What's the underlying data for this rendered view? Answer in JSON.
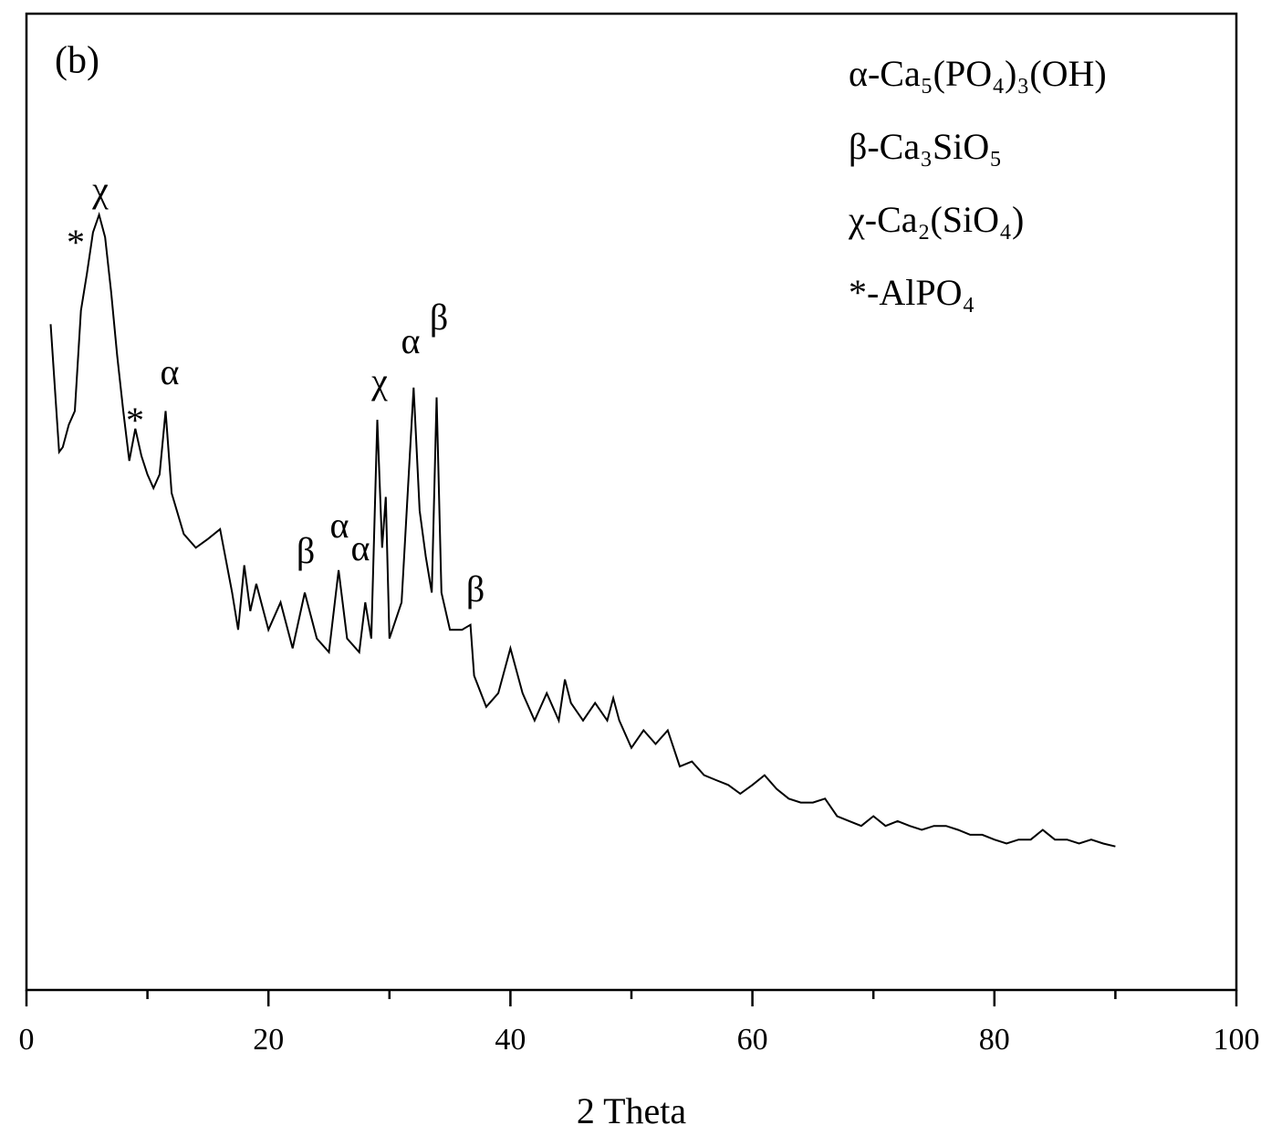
{
  "chart_data": {
    "type": "line",
    "panel_label": "(b)",
    "xlabel": "2 Theta",
    "x": [
      2,
      2.7,
      3,
      3.5,
      4,
      4.5,
      5,
      5.5,
      6,
      6.5,
      7,
      7.5,
      8,
      8.5,
      9,
      9.5,
      10,
      10.5,
      11,
      11.5,
      12,
      13,
      14,
      15,
      16,
      17,
      17.5,
      18,
      18.5,
      19,
      20,
      21,
      22,
      23,
      24,
      25,
      25.8,
      26.5,
      27.5,
      28,
      28.5,
      29,
      29.4,
      29.7,
      30,
      31,
      32,
      32.5,
      33,
      33.5,
      33.9,
      34.3,
      35,
      36,
      36.7,
      37,
      38,
      39,
      40,
      41,
      42,
      43,
      44,
      44.5,
      45,
      46,
      47,
      48,
      48.5,
      49,
      50,
      51,
      52,
      53,
      54,
      55,
      56,
      57,
      58,
      59,
      60,
      61,
      62,
      63,
      64,
      65,
      66,
      67,
      68,
      69,
      70,
      71,
      72,
      73,
      74,
      75,
      76,
      77,
      78,
      79,
      80,
      81,
      82,
      83,
      84,
      85,
      86,
      87,
      88,
      89,
      90
    ],
    "values": [
      68.2,
      55.1,
      55.6,
      57.9,
      59.3,
      69.6,
      73.4,
      77.6,
      79.4,
      77.1,
      71.5,
      65.0,
      59.3,
      54.2,
      57.5,
      54.7,
      52.8,
      51.4,
      52.8,
      59.3,
      50.9,
      46.7,
      45.3,
      46.2,
      47.2,
      40.7,
      36.9,
      43.5,
      38.8,
      41.6,
      36.9,
      39.7,
      35.0,
      40.7,
      36.0,
      34.6,
      43.0,
      36.0,
      34.6,
      39.7,
      36.0,
      58.4,
      45.3,
      50.5,
      36.0,
      39.7,
      61.7,
      49.1,
      44.4,
      40.7,
      60.7,
      40.7,
      36.9,
      36.9,
      37.4,
      32.2,
      29.0,
      30.4,
      35.0,
      30.4,
      27.6,
      30.4,
      27.6,
      31.8,
      29.4,
      27.6,
      29.4,
      27.6,
      29.9,
      27.6,
      24.8,
      26.6,
      25.2,
      26.6,
      22.9,
      23.4,
      22.0,
      21.5,
      21.0,
      20.1,
      21.0,
      22.0,
      20.6,
      19.6,
      19.2,
      19.2,
      19.6,
      17.8,
      17.3,
      16.8,
      17.8,
      16.8,
      17.3,
      16.8,
      16.4,
      16.8,
      16.8,
      16.4,
      15.9,
      15.9,
      15.4,
      15.0,
      15.4,
      15.4,
      16.4,
      15.4,
      15.4,
      15.0,
      15.4,
      15.0,
      14.7
    ],
    "color": "#000000",
    "xlim": [
      0,
      100
    ],
    "xticks": [
      0,
      20,
      40,
      60,
      80,
      100
    ],
    "xminorticks": [
      10,
      30,
      50,
      70,
      90
    ],
    "ylim": [
      0,
      100
    ],
    "annotations": [
      "*",
      "χ",
      "α",
      "*",
      "β",
      "α",
      "α",
      "χ",
      "α",
      "β",
      "β"
    ],
    "legend": [
      "α-Ca₅(PO₄)₃(OH)",
      "β-Ca₃SiO₅",
      "χ-Ca₂(SiO₄)",
      "*-AlPO₄"
    ]
  }
}
